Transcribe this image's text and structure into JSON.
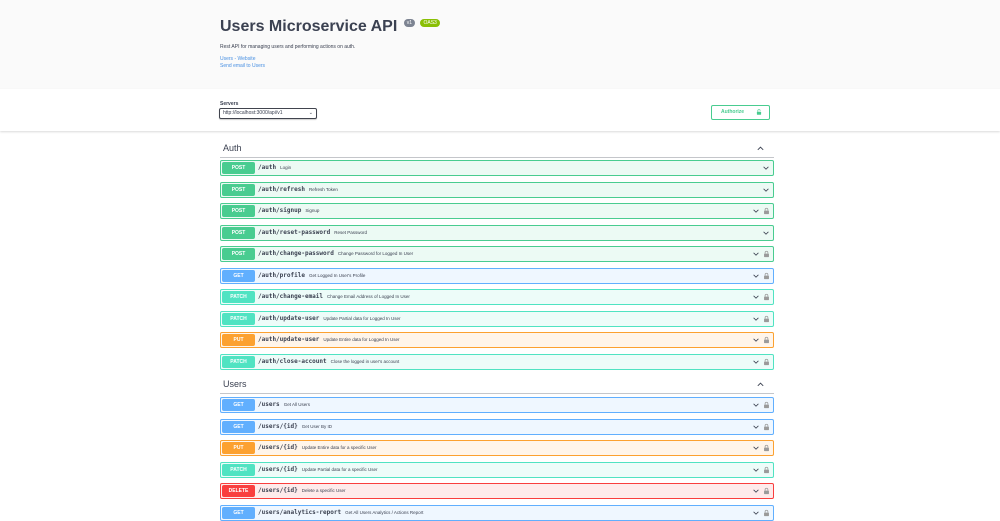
{
  "info": {
    "title": "Users Microservice API",
    "version": "v1",
    "oas_badge": "OAS3",
    "description": "Rest API for managing users and performing actions on auth.",
    "links": [
      "Users - Website",
      "Send email to Users"
    ]
  },
  "servers": {
    "label": "Servers",
    "selected": "http://localhost:3000/api/v1"
  },
  "authorize": {
    "label": "Authorize"
  },
  "tags": [
    {
      "name": "Auth",
      "operations": [
        {
          "method": "POST",
          "path": "/auth",
          "summary": "Login",
          "locked": false
        },
        {
          "method": "POST",
          "path": "/auth/refresh",
          "summary": "Refresh Token",
          "locked": false
        },
        {
          "method": "POST",
          "path": "/auth/signup",
          "summary": "Signup",
          "locked": true
        },
        {
          "method": "POST",
          "path": "/auth/reset-password",
          "summary": "Reset Password",
          "locked": false
        },
        {
          "method": "POST",
          "path": "/auth/change-password",
          "summary": "Change Password for Logged In User",
          "locked": true
        },
        {
          "method": "GET",
          "path": "/auth/profile",
          "summary": "Get Logged In User's Profile",
          "locked": true
        },
        {
          "method": "PATCH",
          "path": "/auth/change-email",
          "summary": "Change Email Address of Logged In User",
          "locked": true
        },
        {
          "method": "PATCH",
          "path": "/auth/update-user",
          "summary": "Update Partial data for Logged In User",
          "locked": true
        },
        {
          "method": "PUT",
          "path": "/auth/update-user",
          "summary": "Update Entire data for Logged In User",
          "locked": true
        },
        {
          "method": "PATCH",
          "path": "/auth/close-account",
          "summary": "Close the logged in user's account",
          "locked": true
        }
      ]
    },
    {
      "name": "Users",
      "operations": [
        {
          "method": "GET",
          "path": "/users",
          "summary": "Get All Users",
          "locked": true
        },
        {
          "method": "GET",
          "path": "/users/{id}",
          "summary": "Get User By ID",
          "locked": true
        },
        {
          "method": "PUT",
          "path": "/users/{id}",
          "summary": "Update Entire data for a specific User",
          "locked": true
        },
        {
          "method": "PATCH",
          "path": "/users/{id}",
          "summary": "Update Partial data for a specific User",
          "locked": true
        },
        {
          "method": "DELETE",
          "path": "/users/{id}",
          "summary": "Delete a specific User",
          "locked": true
        },
        {
          "method": "GET",
          "path": "/users/analytics-report",
          "summary": "Get All Users Analytics / Actions Report",
          "locked": true
        }
      ]
    }
  ],
  "colors": {
    "post": "#49cc90",
    "get": "#61affe",
    "patch": "#50e3c2",
    "put": "#fca130",
    "delete": "#f93e3e",
    "text": "#3b4151",
    "link": "#4990e2"
  }
}
